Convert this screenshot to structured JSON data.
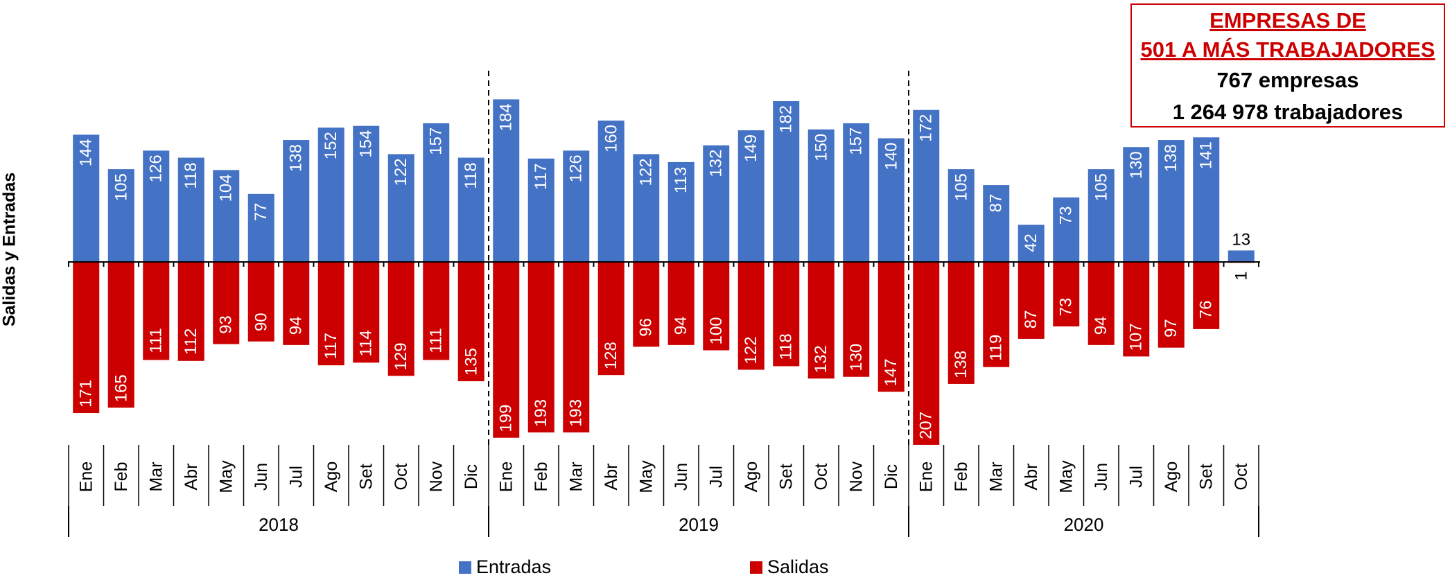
{
  "info_box": {
    "line1": "EMPRESAS DE",
    "line2": "501 A MÁS TRABAJADORES",
    "line3": "767 empresas",
    "line4": "1 264 978 trabajadores"
  },
  "colors": {
    "entradas": "#4472c4",
    "salidas": "#cc0000",
    "box_border": "#cc0000"
  },
  "chart_data": {
    "type": "bar",
    "ylabel": "Salidas  y  Entradas",
    "categories": [
      "Ene",
      "Feb",
      "Mar",
      "Abr",
      "May",
      "Jun",
      "Jul",
      "Ago",
      "Set",
      "Oct",
      "Nov",
      "Dic",
      "Ene",
      "Feb",
      "Mar",
      "Abr",
      "May",
      "Jun",
      "Jul",
      "Ago",
      "Set",
      "Oct",
      "Nov",
      "Dic",
      "Ene",
      "Feb",
      "Mar",
      "Abr",
      "May",
      "Jun",
      "Jul",
      "Ago",
      "Set",
      "Oct"
    ],
    "years": [
      {
        "label": "2018",
        "count": 12
      },
      {
        "label": "2019",
        "count": 12
      },
      {
        "label": "2020",
        "count": 10
      }
    ],
    "series": [
      {
        "name": "Entradas",
        "values": [
          144,
          105,
          126,
          118,
          104,
          77,
          138,
          152,
          154,
          122,
          157,
          118,
          184,
          117,
          126,
          160,
          122,
          113,
          132,
          149,
          182,
          150,
          157,
          140,
          172,
          105,
          87,
          42,
          73,
          105,
          130,
          138,
          141,
          13
        ]
      },
      {
        "name": "Salidas",
        "values": [
          171,
          165,
          111,
          112,
          93,
          90,
          94,
          117,
          114,
          129,
          111,
          135,
          199,
          193,
          193,
          128,
          96,
          94,
          100,
          122,
          118,
          132,
          130,
          147,
          207,
          138,
          119,
          87,
          73,
          94,
          107,
          97,
          76,
          1
        ]
      }
    ],
    "legend": "bottom",
    "grid": false
  }
}
